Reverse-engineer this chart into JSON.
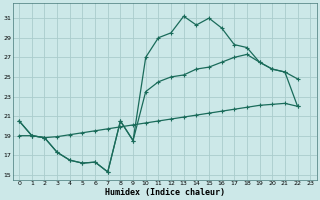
{
  "xlabel": "Humidex (Indice chaleur)",
  "background_color": "#cce8e8",
  "grid_color": "#aacccc",
  "line_color": "#1a6b5a",
  "xlim": [
    -0.5,
    23.5
  ],
  "ylim": [
    14.5,
    32.5
  ],
  "yticks": [
    15,
    17,
    19,
    21,
    23,
    25,
    27,
    29,
    31
  ],
  "xticks": [
    0,
    1,
    2,
    3,
    4,
    5,
    6,
    7,
    8,
    9,
    10,
    11,
    12,
    13,
    14,
    15,
    16,
    17,
    18,
    19,
    20,
    21,
    22,
    23
  ],
  "curve1_x": [
    0,
    1,
    2,
    3,
    4,
    5,
    6,
    7,
    8,
    9,
    10,
    11,
    12,
    13,
    14,
    15,
    16,
    17,
    18,
    19,
    20,
    21,
    22
  ],
  "curve1_y": [
    20.5,
    19.0,
    18.8,
    17.3,
    16.5,
    16.2,
    16.3,
    15.3,
    20.5,
    18.5,
    27.0,
    29.0,
    29.5,
    31.2,
    30.3,
    31.0,
    30.0,
    28.3,
    28.0,
    26.5,
    25.8,
    25.5,
    24.8
  ],
  "curve2_x": [
    0,
    1,
    2,
    3,
    4,
    5,
    6,
    7,
    8,
    9,
    10,
    11,
    12,
    13,
    14,
    15,
    16,
    17,
    18,
    19,
    20,
    21,
    22
  ],
  "curve2_y": [
    20.5,
    19.0,
    18.8,
    17.3,
    16.5,
    16.2,
    16.3,
    15.3,
    20.5,
    18.5,
    23.5,
    24.5,
    25.0,
    25.2,
    25.8,
    26.0,
    26.5,
    27.0,
    27.3,
    26.5,
    25.8,
    25.5,
    22.0
  ],
  "curve3_x": [
    0,
    1,
    2,
    3,
    4,
    5,
    6,
    7,
    8,
    9,
    10,
    11,
    12,
    13,
    14,
    15,
    16,
    17,
    18,
    19,
    20,
    21,
    22
  ],
  "curve3_y": [
    19.0,
    19.0,
    18.8,
    18.9,
    19.1,
    19.3,
    19.5,
    19.7,
    19.9,
    20.1,
    20.3,
    20.5,
    20.7,
    20.9,
    21.1,
    21.3,
    21.5,
    21.7,
    21.9,
    22.1,
    22.2,
    22.3,
    22.0
  ]
}
